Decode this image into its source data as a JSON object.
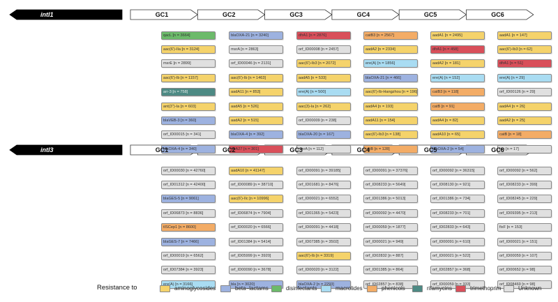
{
  "colors": {
    "aminoglycosides": "#f5d36b",
    "beta_lactams": "#9db2e0",
    "disinfectants": "#6cba6a",
    "macrolides": "#a9dcf2",
    "phenicols": "#f3ac66",
    "rifamycins": "#4d8a84",
    "trimethoprim": "#d94f5a",
    "unknown": "#e0e0e0"
  },
  "panels": [
    {
      "integron": "intI1",
      "cassettes": [
        "GC1",
        "GC2",
        "GC3",
        "GC4",
        "GC5",
        "GC6"
      ],
      "columns": [
        [
          {
            "text": "qacL [n = 3664]",
            "cls": "disinfectants"
          },
          {
            "text": "aac(6')-IIa [n = 3124]",
            "cls": "aminoglycosides"
          },
          {
            "text": "msrE [n = 2899]",
            "cls": "unknown"
          },
          {
            "text": "aac(6')-Ib [n = 1157]",
            "cls": "aminoglycosides"
          },
          {
            "text": "arr-3 [n = 758]",
            "cls": "rifamycins"
          },
          {
            "text": "ant(3'')-Ia [n = 603]",
            "cls": "aminoglycosides"
          },
          {
            "text": "blaVEB-3 [n = 360]",
            "cls": "beta_lactams"
          },
          {
            "text": "orf_ID00015 [n = 341]",
            "cls": "unknown"
          },
          {
            "text": "blaOXA-4 [n = 340]",
            "cls": "beta_lactams"
          }
        ],
        [
          {
            "text": "blaOXA-21 [n = 3240]",
            "cls": "beta_lactams"
          },
          {
            "text": "msrA [n = 2863]",
            "cls": "unknown"
          },
          {
            "text": "orf_ID00046 [n = 2131]",
            "cls": "unknown"
          },
          {
            "text": "aac(6')-Ib [n = 1463]",
            "cls": "aminoglycosides"
          },
          {
            "text": "aadA11 [n = 853]",
            "cls": "aminoglycosides"
          },
          {
            "text": "aadA5 [n = 526]",
            "cls": "aminoglycosides"
          },
          {
            "text": "aadA2 [n = 515]",
            "cls": "aminoglycosides"
          },
          {
            "text": "blaOXA-4 [n = 392]",
            "cls": "beta_lactams"
          },
          {
            "text": "dfrA27 [n = 301]",
            "cls": "trimethoprim"
          }
        ],
        [
          {
            "text": "dfrA1 [n = 2876]",
            "cls": "trimethoprim"
          },
          {
            "text": "orf_ID00008 [n = 2457]",
            "cls": "unknown"
          },
          {
            "text": "aac(6')-Ib3 [n = 2072]",
            "cls": "aminoglycosides"
          },
          {
            "text": "aadA5 [n = 533]",
            "cls": "aminoglycosides"
          },
          {
            "text": "ere(A) [n = 500]",
            "cls": "macrolides"
          },
          {
            "text": "aac(3)-Ia [n = 262]",
            "cls": "aminoglycosides"
          },
          {
            "text": "orf_ID00009 [n = 238]",
            "cls": "unknown"
          },
          {
            "text": "blaOXA-20 [n = 167]",
            "cls": "beta_lactams"
          },
          {
            "text": "msrA [n = 112]",
            "cls": "unknown"
          }
        ],
        [
          {
            "text": "catB3 [n = 2567]",
            "cls": "phenicols"
          },
          {
            "text": "aadA2 [n = 2334]",
            "cls": "aminoglycosides"
          },
          {
            "text": "ere(A) [n = 1856]",
            "cls": "macrolides"
          },
          {
            "text": "blaOXA-21 [n = 466]",
            "cls": "beta_lactams"
          },
          {
            "text": "aac(6')-Ib-Hangzhou [n = 196]",
            "cls": "aminoglycosides"
          },
          {
            "text": "aadA4 [n = 193]",
            "cls": "aminoglycosides"
          },
          {
            "text": "aadA11 [n = 154]",
            "cls": "aminoglycosides"
          },
          {
            "text": "aac(6')-Ib3 [n = 138]",
            "cls": "aminoglycosides"
          },
          {
            "text": "catB [n = 128]",
            "cls": "phenicols"
          }
        ],
        [
          {
            "text": "aadA1 [n = 2495]",
            "cls": "aminoglycosides"
          },
          {
            "text": "dfrA1 [n = 458]",
            "cls": "trimethoprim"
          },
          {
            "text": "aadA2 [n = 181]",
            "cls": "aminoglycosides"
          },
          {
            "text": "ere(A) [n = 152]",
            "cls": "macrolides"
          },
          {
            "text": "catB3 [n = 118]",
            "cls": "phenicols"
          },
          {
            "text": "catB [n = 91]",
            "cls": "phenicols"
          },
          {
            "text": "aadA4 [n = 82]",
            "cls": "aminoglycosides"
          },
          {
            "text": "aadA10 [n = 65]",
            "cls": "aminoglycosides"
          },
          {
            "text": "blaOXA-2 [n = 54]",
            "cls": "beta_lactams"
          }
        ],
        [
          {
            "text": "aadA1 [n = 147]",
            "cls": "aminoglycosides"
          },
          {
            "text": "aac(6')-Ib3 [n = 62]",
            "cls": "aminoglycosides"
          },
          {
            "text": "dfrA1 [n = 51]",
            "cls": "trimethoprim"
          },
          {
            "text": "ere(A) [n = 29]",
            "cls": "macrolides"
          },
          {
            "text": "orf_ID00126 [n = 29]",
            "cls": "unknown"
          },
          {
            "text": "aadA4 [n = 26]",
            "cls": "aminoglycosides"
          },
          {
            "text": "aadA2 [n = 25]",
            "cls": "aminoglycosides"
          },
          {
            "text": "catB [n = 18]",
            "cls": "phenicols"
          },
          {
            "text": "bla [n = 17]",
            "cls": "unknown"
          }
        ]
      ]
    },
    {
      "integron": "intI3",
      "cassettes": [
        "GC1",
        "GC2",
        "GC3",
        "GC4",
        "GC5",
        "GC6"
      ],
      "columns": [
        [
          {
            "text": "orf_ID00030 [n = 42760]",
            "cls": "unknown"
          },
          {
            "text": "orf_ID01312 [n = 42400]",
            "cls": "unknown"
          },
          {
            "text": "blaGES-5 [n = 9061]",
            "cls": "beta_lactams"
          },
          {
            "text": "orf_ID06873 [n = 8836]",
            "cls": "unknown"
          },
          {
            "text": "tISCep1 [n = 8600]",
            "cls": "phenicols"
          },
          {
            "text": "blaGES-7 [n = 7466]",
            "cls": "beta_lactams"
          },
          {
            "text": "orf_ID00019 [n = 6562]",
            "cls": "unknown"
          },
          {
            "text": "orf_ID07384 [n = 3923]",
            "cls": "unknown"
          },
          {
            "text": "ere(A) [n = 3166]",
            "cls": "macrolides"
          }
        ],
        [
          {
            "text": "aadA10 [n = 41147]",
            "cls": "aminoglycosides"
          },
          {
            "text": "orf_ID00089 [n = 38710]",
            "cls": "unknown"
          },
          {
            "text": "aac(6')-IIc [n = 10996]",
            "cls": "aminoglycosides"
          },
          {
            "text": "orf_ID06874 [n = 7904]",
            "cls": "unknown"
          },
          {
            "text": "orf_ID00020 [n = 6566]",
            "cls": "unknown"
          },
          {
            "text": "orf_ID01384 [n = 5414]",
            "cls": "unknown"
          },
          {
            "text": "orf_ID05999 [n = 3920]",
            "cls": "unknown"
          },
          {
            "text": "orf_ID00090 [n = 3678]",
            "cls": "unknown"
          },
          {
            "text": "bla [n = 3020]",
            "cls": "beta_lactams"
          }
        ],
        [
          {
            "text": "orf_ID00091 [n = 39185]",
            "cls": "unknown"
          },
          {
            "text": "orf_ID01681 [n = 8476]",
            "cls": "unknown"
          },
          {
            "text": "orf_ID00021 [n = 6552]",
            "cls": "unknown"
          },
          {
            "text": "orf_ID01365 [n = 5423]",
            "cls": "unknown"
          },
          {
            "text": "orf_ID00091 [n = 4418]",
            "cls": "unknown"
          },
          {
            "text": "orf_ID07385 [n = 3502]",
            "cls": "unknown"
          },
          {
            "text": "aac(6')-Ib [n = 3319]",
            "cls": "aminoglycosides"
          },
          {
            "text": "orf_ID00020 [n = 3122]",
            "cls": "unknown"
          },
          {
            "text": "blaOXA-2 [n = 2293]",
            "cls": "beta_lactams"
          }
        ],
        [
          {
            "text": "orf_ID00091 [n = 37376]",
            "cls": "unknown"
          },
          {
            "text": "orf_ID08233 [n = 5649]",
            "cls": "unknown"
          },
          {
            "text": "orf_ID01386 [n = 5013]",
            "cls": "unknown"
          },
          {
            "text": "orf_ID00092 [n = 4470]",
            "cls": "unknown"
          },
          {
            "text": "orf_ID00059 [n = 1877]",
            "cls": "unknown"
          },
          {
            "text": "orf_ID00021 [n = 949]",
            "cls": "unknown"
          },
          {
            "text": "orf_ID02832 [n = 887]",
            "cls": "unknown"
          },
          {
            "text": "orf_ID01385 [n = 864]",
            "cls": "unknown"
          },
          {
            "text": "orf_ID02857 [n = 838]",
            "cls": "unknown"
          }
        ],
        [
          {
            "text": "orf_ID00092 [n = 36315]",
            "cls": "unknown"
          },
          {
            "text": "orf_ID08130 [n = 921]",
            "cls": "unknown"
          },
          {
            "text": "orf_ID01386 [n = 734]",
            "cls": "unknown"
          },
          {
            "text": "orf_ID08233 [n = 701]",
            "cls": "unknown"
          },
          {
            "text": "orf_ID02833 [n = 643]",
            "cls": "unknown"
          },
          {
            "text": "orf_ID00091 [n = 610]",
            "cls": "unknown"
          },
          {
            "text": "orf_ID00021 [n = 522]",
            "cls": "unknown"
          },
          {
            "text": "orf_ID02857 [n = 368]",
            "cls": "unknown"
          },
          {
            "text": "orf_ID00059 [n = 333]",
            "cls": "unknown"
          }
        ],
        [
          {
            "text": "orf_ID00092 [n = 562]",
            "cls": "unknown"
          },
          {
            "text": "orf_ID08233 [n = 399]",
            "cls": "unknown"
          },
          {
            "text": "orf_ID08245 [n = 229]",
            "cls": "unknown"
          },
          {
            "text": "orf_ID09395 [n = 213]",
            "cls": "unknown"
          },
          {
            "text": "fixF [n = 153]",
            "cls": "unknown"
          },
          {
            "text": "orf_ID00021 [n = 151]",
            "cls": "unknown"
          },
          {
            "text": "orf_ID00059 [n = 107]",
            "cls": "unknown"
          },
          {
            "text": "orf_ID00652 [n = 98]",
            "cls": "unknown"
          },
          {
            "text": "orf_ID08469 [n = 98]",
            "cls": "unknown"
          }
        ]
      ]
    }
  ],
  "legend": {
    "title": "Resistance to",
    "items": [
      {
        "label": "aminoglycosides",
        "cls": "aminoglycosides"
      },
      {
        "label": "beta−lactams",
        "cls": "beta_lactams"
      },
      {
        "label": "disinfectants",
        "cls": "disinfectants"
      },
      {
        "label": "macrolides",
        "cls": "macrolides"
      },
      {
        "label": "phenicols",
        "cls": "phenicols"
      },
      {
        "label": "rifamycins",
        "cls": "rifamycins"
      },
      {
        "label": "trimethoprim",
        "cls": "trimethoprim"
      },
      {
        "label": "Unknown",
        "cls": "unknown"
      }
    ]
  }
}
